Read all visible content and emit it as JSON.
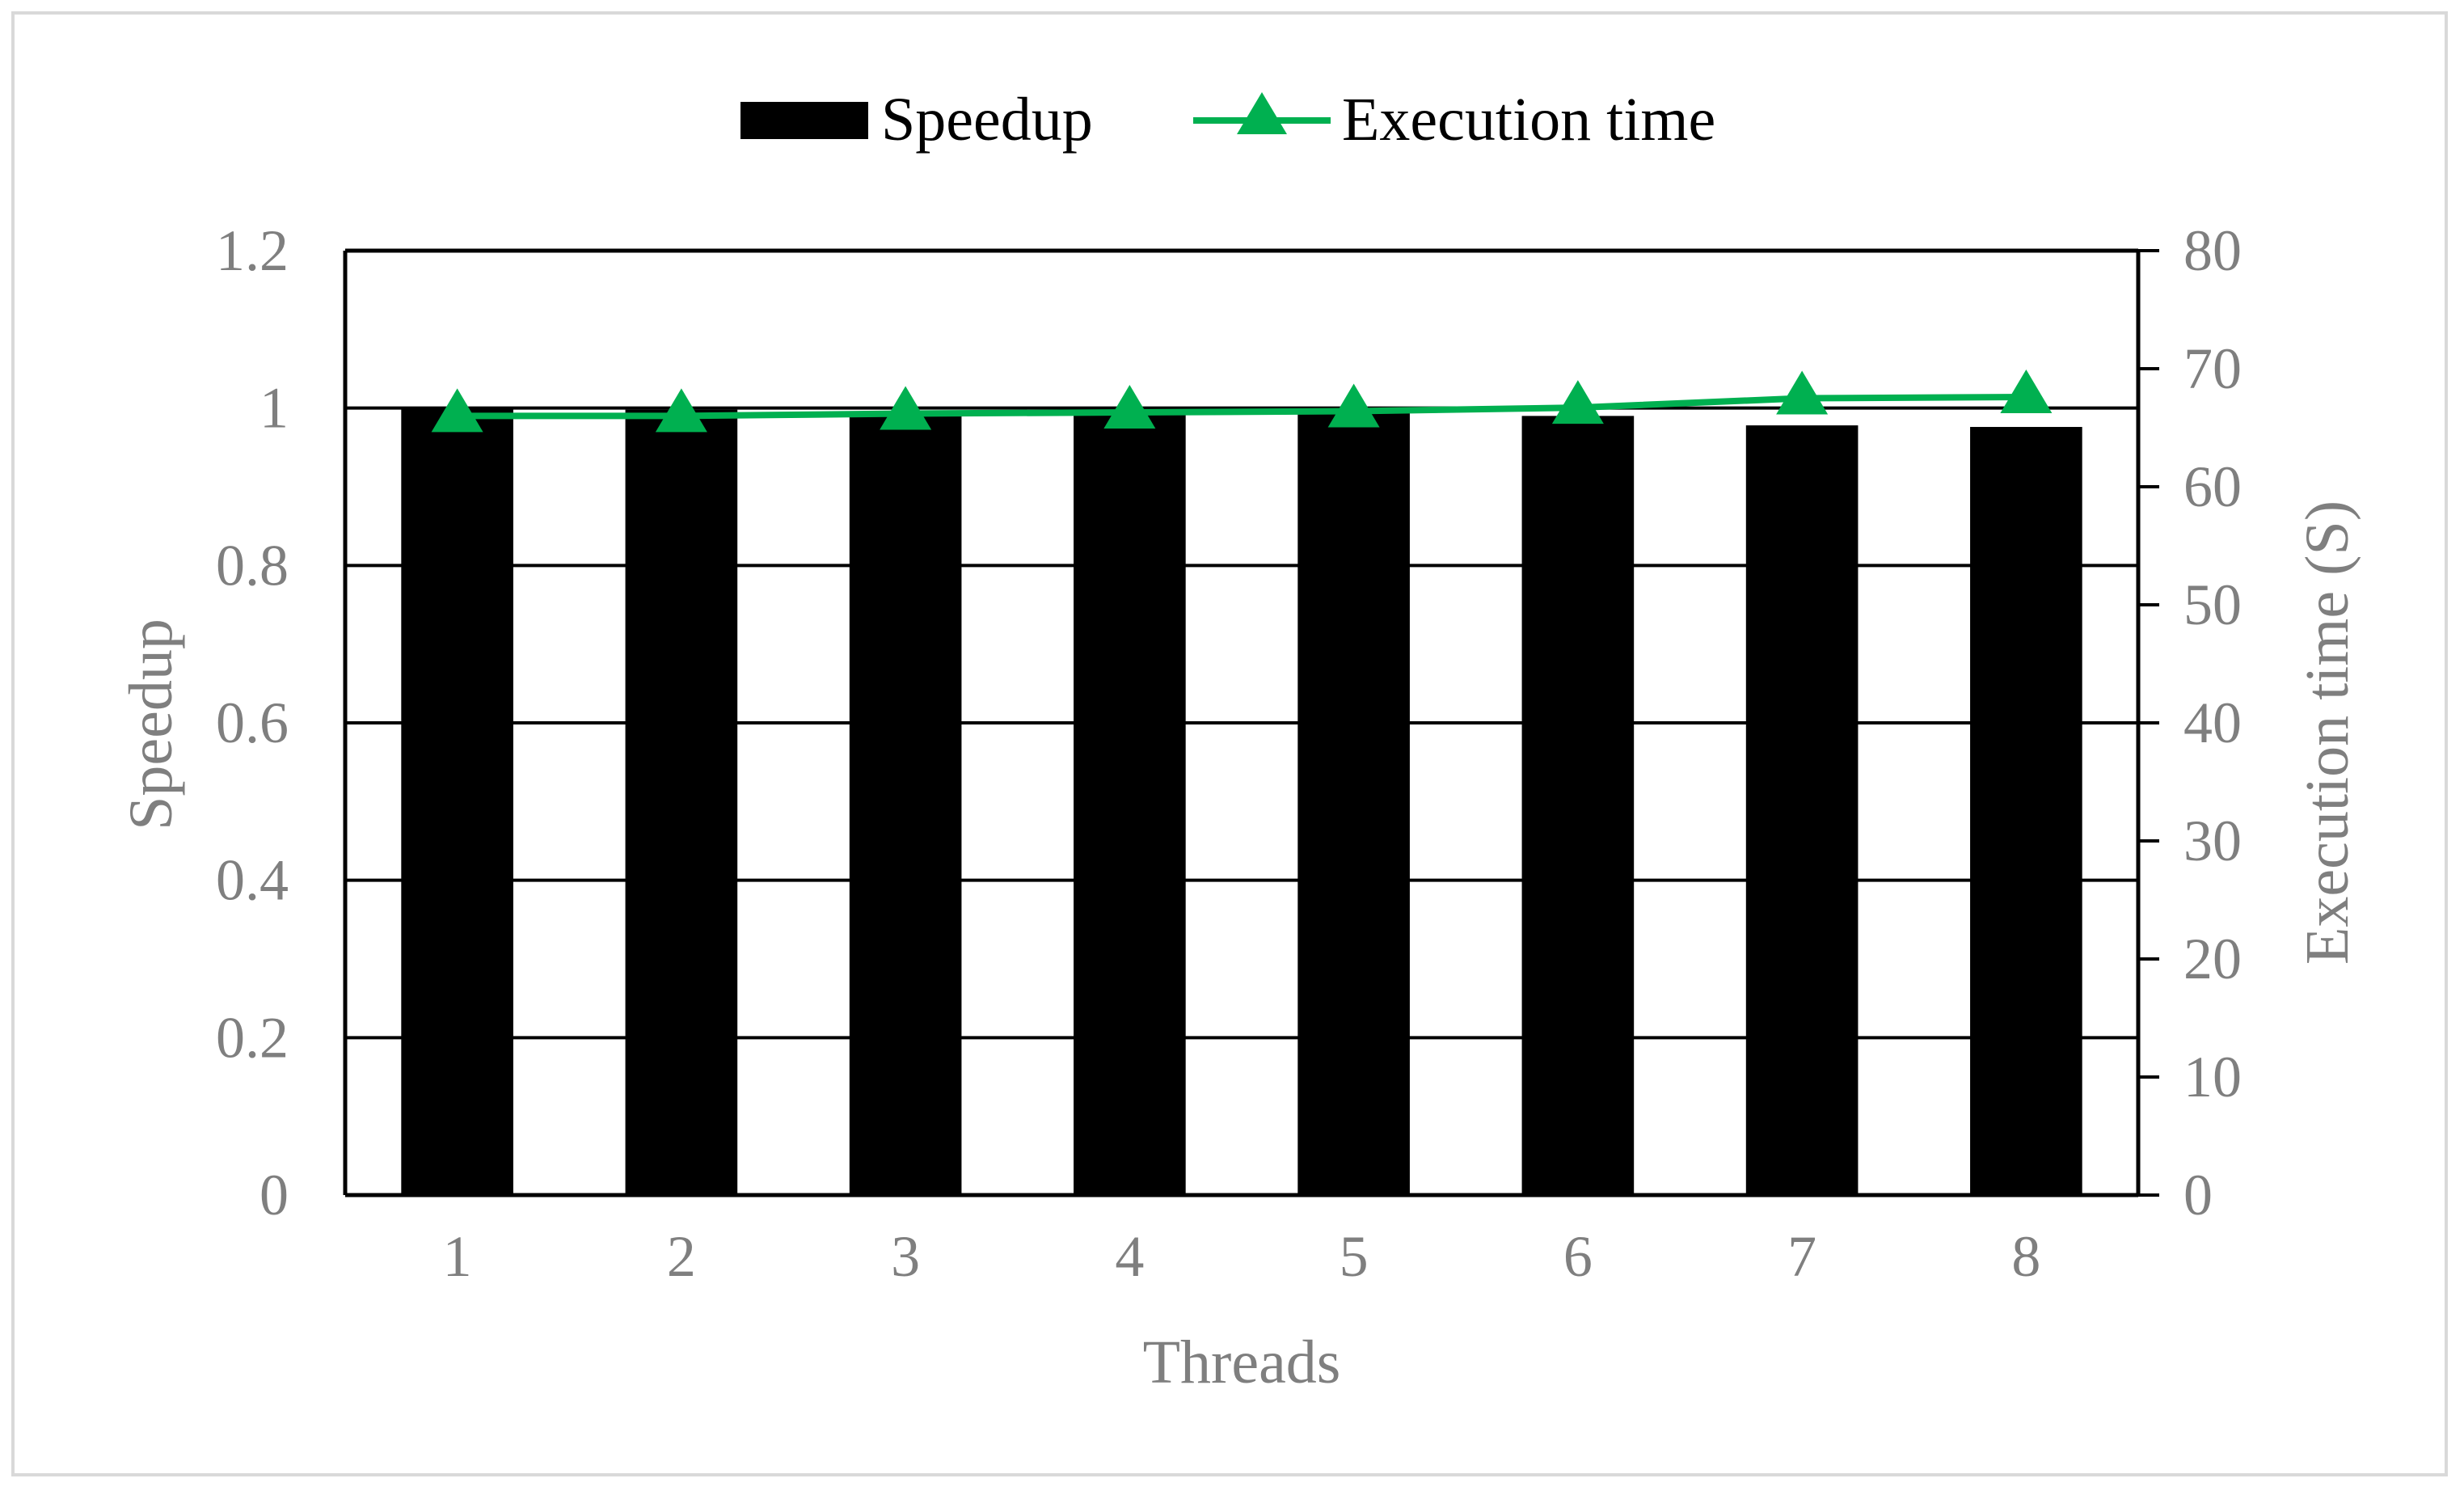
{
  "chart_data": {
    "type": "bar+line",
    "categories": [
      "1",
      "2",
      "3",
      "4",
      "5",
      "6",
      "7",
      "8"
    ],
    "xlabel": "Threads",
    "ylabel_left": "Speedup",
    "ylabel_right": "Execution time (S)",
    "ylim_left": [
      0,
      1.2
    ],
    "yticks_left": [
      "0",
      "0.2",
      "0.4",
      "0.6",
      "0.8",
      "1",
      "1.2"
    ],
    "ylim_right": [
      0,
      80
    ],
    "yticks_right": [
      "0",
      "10",
      "20",
      "30",
      "40",
      "50",
      "60",
      "70",
      "80"
    ],
    "grid": true,
    "legend_position": "top-center",
    "series": [
      {
        "name": "Speedup",
        "type": "bar",
        "axis": "left",
        "color": "#000000",
        "values": [
          1.0,
          0.998,
          0.996,
          0.995,
          0.994,
          0.99,
          0.978,
          0.976
        ]
      },
      {
        "name": "Execution time",
        "type": "line",
        "axis": "right",
        "marker": "triangle",
        "color": "#00b050",
        "values": [
          66.0,
          66.0,
          66.2,
          66.3,
          66.4,
          66.7,
          67.5,
          67.6
        ]
      }
    ]
  }
}
